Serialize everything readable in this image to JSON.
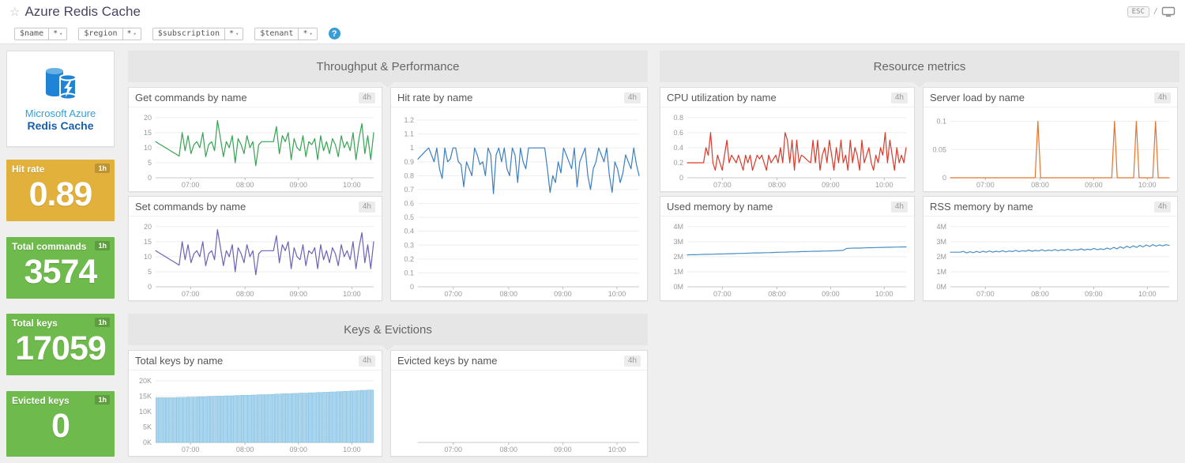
{
  "header": {
    "title": "Azure Redis Cache",
    "esc_label": "ESC",
    "separator": "/"
  },
  "template_vars": {
    "items": [
      {
        "name": "$name",
        "value": "*"
      },
      {
        "name": "$region",
        "value": "*"
      },
      {
        "name": "$subscription",
        "value": "*"
      },
      {
        "name": "$tenant",
        "value": "*"
      }
    ],
    "help_label": "?"
  },
  "logo_widget": {
    "line1": "Microsoft Azure",
    "line2": "Redis Cache"
  },
  "value_widgets": [
    {
      "label": "Hit rate",
      "value": "0.89",
      "timeframe": "1h",
      "color": "#e2b13c"
    },
    {
      "label": "Total commands",
      "value": "3574",
      "timeframe": "1h",
      "color": "#6fba4c"
    },
    {
      "label": "Total keys",
      "value": "17059",
      "timeframe": "1h",
      "color": "#6fba4c"
    },
    {
      "label": "Evicted keys",
      "value": "0",
      "timeframe": "1h",
      "color": "#6fba4c"
    }
  ],
  "sections": [
    {
      "title": "Throughput & Performance"
    },
    {
      "title": "Resource metrics"
    },
    {
      "title": "Keys & Evictions"
    }
  ],
  "chart_data": [
    {
      "type": "line",
      "title": "Get commands by name",
      "timeframe": "4h",
      "color": "#36a352",
      "ylim": [
        0,
        21
      ],
      "yticks": [
        0,
        5,
        10,
        15,
        20
      ],
      "ytick_labels": [
        "0",
        "5",
        "10",
        "15",
        "20"
      ],
      "xticks": [
        [
          0.16,
          "07:00"
        ],
        [
          0.41,
          "08:00"
        ],
        [
          0.655,
          "09:00"
        ],
        [
          0.9,
          "10:00"
        ]
      ],
      "values": [
        12,
        11.4,
        10.8,
        10.2,
        9.6,
        9,
        8.4,
        7.8,
        7.2,
        15,
        9,
        14,
        8,
        11,
        12,
        10,
        15,
        7,
        11,
        12,
        9,
        19,
        13,
        7,
        12,
        10,
        14,
        5,
        13,
        11,
        8,
        14,
        10,
        12,
        4,
        11,
        12,
        12,
        12,
        12,
        12,
        17,
        8,
        14,
        12,
        15,
        6,
        13,
        10,
        9,
        14,
        7,
        12,
        11,
        13,
        6,
        14,
        9,
        12,
        8,
        13,
        11,
        7,
        14,
        10,
        12,
        9,
        15,
        6,
        13,
        18,
        8,
        14,
        6,
        15
      ]
    },
    {
      "type": "line",
      "title": "Hit rate by name",
      "timeframe": "4h",
      "color": "#3c7fc1",
      "ylim": [
        0,
        1.24
      ],
      "yticks": [
        0,
        0.1,
        0.2,
        0.3,
        0.4,
        0.5,
        0.6,
        0.7,
        0.8,
        0.9,
        1,
        1.1,
        1.2
      ],
      "ytick_labels": [
        "0",
        "0.1",
        "0.2",
        "0.3",
        "0.4",
        "0.5",
        "0.6",
        "0.7",
        "0.8",
        "0.9",
        "1",
        "1.1",
        "1.2"
      ],
      "xticks": [
        [
          0.16,
          "07:00"
        ],
        [
          0.41,
          "08:00"
        ],
        [
          0.655,
          "09:00"
        ],
        [
          0.9,
          "10:00"
        ]
      ],
      "values": [
        0.92,
        0.94,
        0.96,
        0.98,
        1,
        0.95,
        0.9,
        1,
        0.85,
        0.78,
        1,
        0.9,
        0.92,
        1,
        1,
        0.9,
        0.88,
        0.72,
        0.9,
        0.85,
        0.8,
        1,
        0.95,
        0.88,
        0.9,
        0.8,
        1,
        0.95,
        0.67,
        0.95,
        1,
        0.9,
        1,
        0.85,
        0.8,
        1,
        0.95,
        0.75,
        1,
        0.9,
        0.85,
        1,
        1,
        1,
        1,
        1,
        1,
        1,
        0.85,
        0.68,
        0.8,
        0.75,
        0.9,
        0.82,
        1,
        0.95,
        0.9,
        0.85,
        1,
        0.72,
        0.9,
        0.95,
        1,
        0.8,
        0.7,
        0.85,
        0.9,
        1,
        0.95,
        0.9,
        1,
        0.8,
        0.68,
        0.9,
        0.85,
        0.75,
        0.82,
        0.95,
        0.9,
        0.85,
        1,
        0.88,
        0.8
      ]
    },
    {
      "type": "line",
      "title": "Set commands by name",
      "timeframe": "4h",
      "color": "#6e62b5",
      "ylim": [
        0,
        21
      ],
      "yticks": [
        0,
        5,
        10,
        15,
        20
      ],
      "ytick_labels": [
        "0",
        "5",
        "10",
        "15",
        "20"
      ],
      "xticks": [
        [
          0.16,
          "07:00"
        ],
        [
          0.41,
          "08:00"
        ],
        [
          0.655,
          "09:00"
        ],
        [
          0.9,
          "10:00"
        ]
      ],
      "values": [
        12,
        11.4,
        10.8,
        10.2,
        9.6,
        9,
        8.4,
        7.8,
        7.2,
        15,
        9,
        14,
        8,
        11,
        12,
        10,
        15,
        7,
        11,
        12,
        9,
        19,
        13,
        7,
        12,
        10,
        14,
        5,
        13,
        11,
        8,
        14,
        10,
        12,
        4,
        11,
        12,
        12,
        12,
        12,
        12,
        17,
        8,
        14,
        12,
        15,
        6,
        13,
        10,
        9,
        14,
        7,
        12,
        11,
        13,
        6,
        14,
        9,
        12,
        8,
        13,
        11,
        7,
        14,
        10,
        12,
        9,
        15,
        6,
        13,
        18,
        8,
        14,
        6,
        15
      ]
    },
    {
      "type": "line",
      "title": "CPU utilization by name",
      "timeframe": "4h",
      "color": "#d93a2b",
      "ylim": [
        0,
        0.84
      ],
      "yticks": [
        0,
        0.2,
        0.4,
        0.6,
        0.8
      ],
      "ytick_labels": [
        "0",
        "0.2",
        "0.4",
        "0.6",
        "0.8"
      ],
      "xticks": [
        [
          0.16,
          "07:00"
        ],
        [
          0.41,
          "08:00"
        ],
        [
          0.655,
          "09:00"
        ],
        [
          0.9,
          "10:00"
        ]
      ],
      "values": [
        0.2,
        0.2,
        0.2,
        0.2,
        0.2,
        0.2,
        0.2,
        0.2,
        0.4,
        0.3,
        0.6,
        0.2,
        0.1,
        0.3,
        0.2,
        0.1,
        0.3,
        0.5,
        0.2,
        0.3,
        0.25,
        0.2,
        0.3,
        0.2,
        0.1,
        0.3,
        0.2,
        0.3,
        0.1,
        0.2,
        0.3,
        0.25,
        0.3,
        0.2,
        0.1,
        0.3,
        0.2,
        0.25,
        0.3,
        0.2,
        0.4,
        0.2,
        0.6,
        0.5,
        0.2,
        0.5,
        0.1,
        0.5,
        0.2,
        0.3,
        0.28,
        0.25,
        0.22,
        0.2,
        0.5,
        0.2,
        0.5,
        0.1,
        0.3,
        0.4,
        0.2,
        0.5,
        0.3,
        0.1,
        0.4,
        0.2,
        0.5,
        0.2,
        0.3,
        0.1,
        0.5,
        0.2,
        0.4,
        0.3,
        0.1,
        0.5,
        0.2,
        0.3,
        0.4,
        0.2,
        0.1,
        0.3,
        0.2,
        0.4,
        0.3,
        0.6,
        0.2,
        0.5,
        0.3,
        0.1,
        0.4,
        0.2,
        0.3,
        0.2,
        0.4
      ]
    },
    {
      "type": "line",
      "title": "Server load by name",
      "timeframe": "4h",
      "color": "#e2742d",
      "ylim": [
        0,
        0.112
      ],
      "yticks": [
        0,
        0.05,
        0.1
      ],
      "ytick_labels": [
        "0",
        "0.05",
        "0.1"
      ],
      "xticks": [
        [
          0.16,
          "07:00"
        ],
        [
          0.41,
          "08:00"
        ],
        [
          0.655,
          "09:00"
        ],
        [
          0.9,
          "10:00"
        ]
      ],
      "values": [
        0,
        0,
        0,
        0,
        0,
        0,
        0,
        0,
        0,
        0,
        0,
        0,
        0,
        0,
        0,
        0,
        0,
        0,
        0,
        0,
        0,
        0,
        0,
        0,
        0,
        0,
        0,
        0,
        0,
        0,
        0,
        0,
        0.1,
        0,
        0,
        0,
        0,
        0,
        0,
        0,
        0,
        0,
        0,
        0,
        0,
        0,
        0,
        0,
        0,
        0,
        0,
        0,
        0,
        0,
        0,
        0,
        0,
        0,
        0,
        0,
        0.1,
        0,
        0,
        0,
        0,
        0,
        0,
        0,
        0.1,
        0,
        0,
        0,
        0,
        0,
        0,
        0.1,
        0,
        0,
        0,
        0,
        0
      ]
    },
    {
      "type": "line",
      "title": "Used memory by name",
      "timeframe": "4h",
      "color": "#4a8fc2",
      "ylim": [
        0,
        4.2
      ],
      "yticks": [
        0,
        1,
        2,
        3,
        4
      ],
      "ytick_labels": [
        "0M",
        "1M",
        "2M",
        "3M",
        "4M"
      ],
      "xticks": [
        [
          0.16,
          "07:00"
        ],
        [
          0.41,
          "08:00"
        ],
        [
          0.655,
          "09:00"
        ],
        [
          0.9,
          "10:00"
        ]
      ],
      "values": [
        2.12,
        2.13,
        2.13,
        2.14,
        2.15,
        2.16,
        2.16,
        2.17,
        2.18,
        2.18,
        2.19,
        2.2,
        2.2,
        2.21,
        2.22,
        2.22,
        2.23,
        2.24,
        2.25,
        2.25,
        2.26,
        2.27,
        2.27,
        2.28,
        2.29,
        2.3,
        2.3,
        2.31,
        2.32,
        2.32,
        2.33,
        2.34,
        2.34,
        2.35,
        2.36,
        2.36,
        2.37,
        2.38,
        2.38,
        2.39,
        2.4,
        2.41,
        2.42,
        2.55,
        2.56,
        2.57,
        2.57,
        2.58,
        2.59,
        2.6,
        2.6,
        2.61,
        2.62,
        2.62,
        2.63,
        2.63,
        2.64,
        2.64,
        2.65,
        2.65
      ]
    },
    {
      "type": "line",
      "title": "RSS memory by name",
      "timeframe": "4h",
      "color": "#4a8fc2",
      "ylim": [
        0,
        4.2
      ],
      "yticks": [
        0,
        1,
        2,
        3,
        4
      ],
      "ytick_labels": [
        "0M",
        "1M",
        "2M",
        "3M",
        "4M"
      ],
      "xticks": [
        [
          0.16,
          "07:00"
        ],
        [
          0.41,
          "08:00"
        ],
        [
          0.655,
          "09:00"
        ],
        [
          0.9,
          "10:00"
        ]
      ],
      "values": [
        2.3,
        2.3,
        2.3,
        2.3,
        2.35,
        2.25,
        2.33,
        2.27,
        2.35,
        2.28,
        2.36,
        2.3,
        2.38,
        2.3,
        2.36,
        2.32,
        2.4,
        2.32,
        2.38,
        2.34,
        2.42,
        2.34,
        2.4,
        2.36,
        2.44,
        2.36,
        2.42,
        2.38,
        2.46,
        2.38,
        2.44,
        2.4,
        2.48,
        2.4,
        2.46,
        2.42,
        2.5,
        2.42,
        2.48,
        2.44,
        2.52,
        2.44,
        2.5,
        2.46,
        2.55,
        2.46,
        2.52,
        2.48,
        2.58,
        2.5,
        2.62,
        2.52,
        2.66,
        2.56,
        2.7,
        2.6,
        2.72,
        2.62,
        2.75,
        2.65,
        2.78,
        2.68,
        2.8,
        2.7,
        2.78,
        2.72,
        2.8,
        2.75
      ]
    },
    {
      "type": "bar",
      "title": "Total keys by name",
      "timeframe": "4h",
      "color": "#a9d6ef",
      "bar_stroke": "#7db8dd",
      "ylim": [
        0,
        21
      ],
      "yticks": [
        0,
        5,
        10,
        15,
        20
      ],
      "ytick_labels": [
        "0K",
        "5K",
        "10K",
        "15K",
        "20K"
      ],
      "xticks": [
        [
          0.16,
          "07:00"
        ],
        [
          0.41,
          "08:00"
        ],
        [
          0.655,
          "09:00"
        ],
        [
          0.9,
          "10:00"
        ]
      ],
      "values": [
        14.5,
        14.5,
        14.5,
        14.5,
        14.5,
        14.5,
        14.6,
        14.6,
        14.6,
        14.7,
        14.7,
        14.7,
        14.8,
        14.8,
        14.8,
        14.9,
        14.9,
        15,
        15,
        15,
        15.1,
        15.1,
        15.1,
        15.2,
        15.2,
        15.3,
        15.3,
        15.3,
        15.4,
        15.4,
        15.5,
        15.5,
        15.5,
        15.6,
        15.6,
        15.7,
        15.7,
        15.8,
        15.8,
        15.8,
        15.9,
        15.9,
        16,
        16,
        16,
        16.1,
        16.1,
        16.2,
        16.2,
        16.3,
        16.3,
        16.4,
        16.4,
        16.5,
        16.5,
        16.6,
        16.6,
        16.7,
        16.7,
        16.8,
        16.9,
        16.9,
        17,
        17
      ]
    },
    {
      "type": "empty",
      "title": "Evicted keys by name",
      "timeframe": "4h",
      "color": "#e2742d",
      "ylim": [
        0,
        1
      ],
      "yticks": [],
      "ytick_labels": [],
      "xticks": [
        [
          0.16,
          "07:00"
        ],
        [
          0.41,
          "08:00"
        ],
        [
          0.655,
          "09:00"
        ],
        [
          0.9,
          "10:00"
        ]
      ],
      "values": []
    }
  ]
}
